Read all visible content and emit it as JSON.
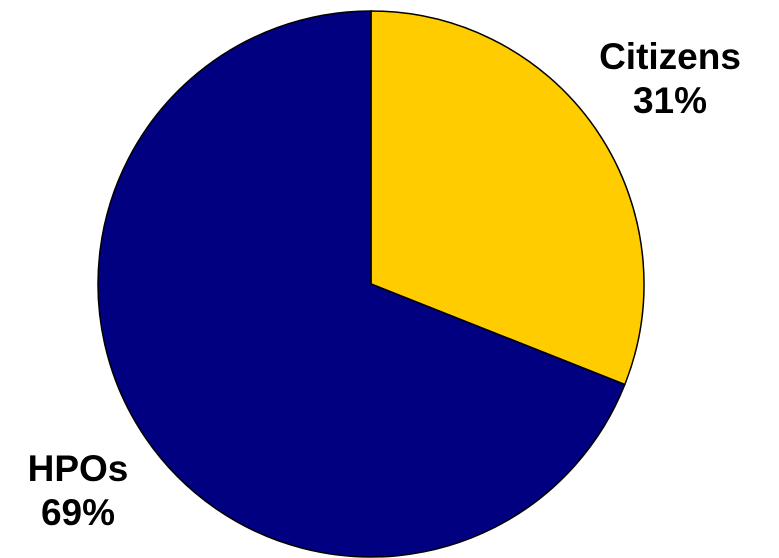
{
  "chart_data": {
    "type": "pie",
    "title": "",
    "slices": [
      {
        "label": "Citizens",
        "value": 31,
        "value_label": "31%",
        "color": "#FFCC00"
      },
      {
        "label": "HPOs",
        "value": 69,
        "value_label": "69%",
        "color": "#000080"
      }
    ],
    "start_angle_deg": 0,
    "direction": "clockwise",
    "legend": "none",
    "stroke_color": "#000000"
  }
}
